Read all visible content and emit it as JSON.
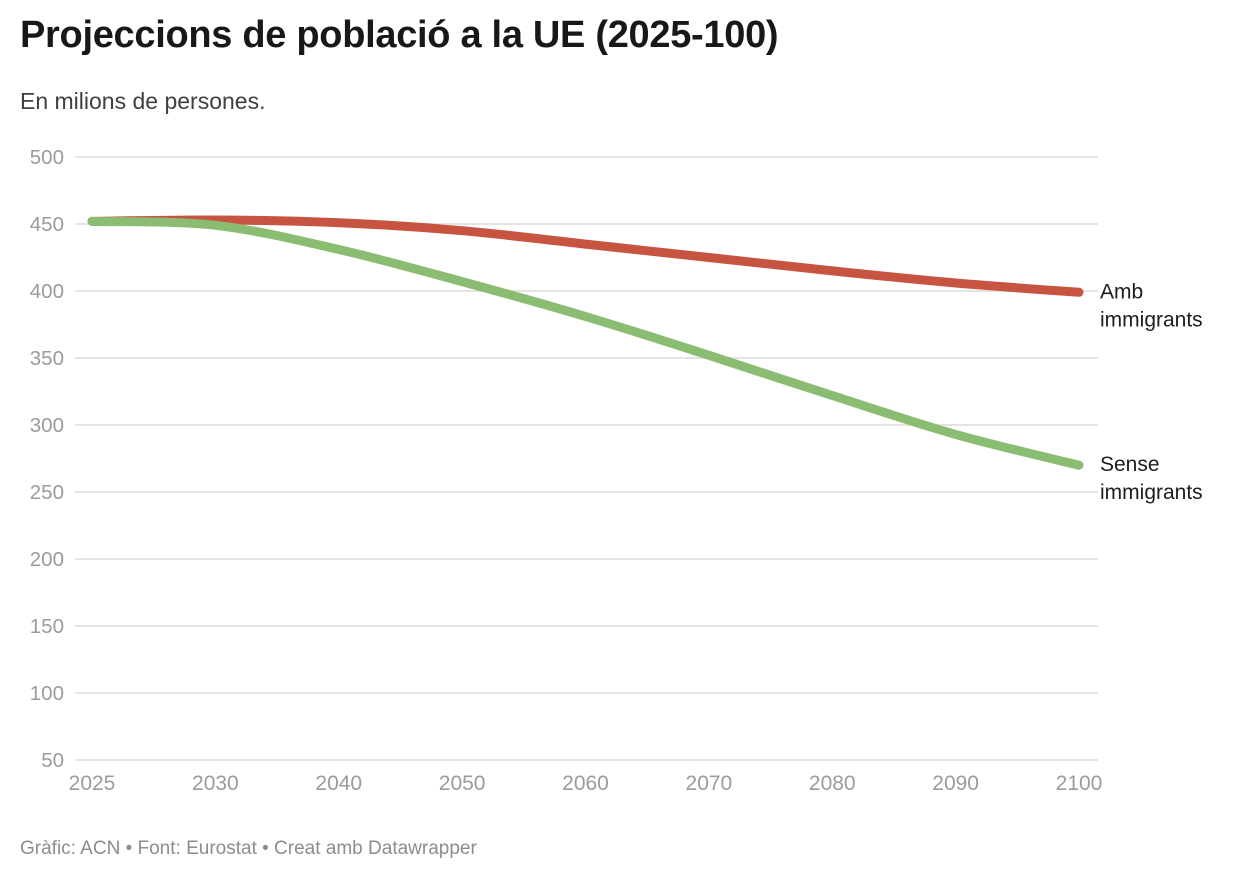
{
  "header": {
    "title": "Projeccions de població a la UE (2025-100)",
    "subtitle": "En milions de persones."
  },
  "footer": {
    "text": "Gràfic: ACN • Font: Eurostat • Creat amb Datawrapper"
  },
  "colors": {
    "amb_immigrants": "#c75441",
    "sense_immigrants": "#8abc72",
    "gridline": "#e4e4e4",
    "axis_text": "#9b9b9b",
    "series_label_text": "#1d1d1d"
  },
  "chart_data": {
    "type": "line",
    "title": "Projeccions de població a la UE (2025-100)",
    "subtitle": "En milions de persones.",
    "xlabel": "",
    "ylabel": "",
    "unit": "milions de persones",
    "categories": [
      "2025",
      "2030",
      "2040",
      "2050",
      "2060",
      "2070",
      "2080",
      "2090",
      "2100"
    ],
    "series": [
      {
        "name": "Amb immigrants",
        "label_lines": [
          "Amb",
          "immigrants"
        ],
        "color_key": "amb_immigrants",
        "values": [
          452,
          453,
          451,
          445,
          435,
          425,
          415,
          406,
          399
        ]
      },
      {
        "name": "Sense immigrants",
        "label_lines": [
          "Sense",
          "immigrants"
        ],
        "color_key": "sense_immigrants",
        "values": [
          452,
          449,
          431,
          407,
          381,
          352,
          322,
          293,
          270
        ]
      }
    ],
    "ylim": [
      50,
      500
    ],
    "yticks": [
      500,
      450,
      400,
      350,
      300,
      250,
      200,
      150,
      100,
      50
    ],
    "grid": "horizontal",
    "legend_position": "inline-right"
  }
}
